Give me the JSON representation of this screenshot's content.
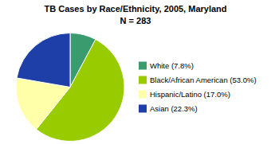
{
  "chart_data": {
    "type": "pie",
    "title": "TB Cases by Race/Ethnicity, 2005, Maryland",
    "subtitle": "N = 283",
    "categories": [
      "White (7.8%)",
      "Black/African American (53.0%)",
      "Hispanic/Latino (17.0%)",
      "Asian (22.3%)"
    ],
    "values": [
      7.8,
      53.0,
      17.0,
      22.3
    ],
    "colors": [
      "#3a9b6f",
      "#99cc00",
      "#ffffaa",
      "#1f3fa8"
    ],
    "legend": "right"
  }
}
